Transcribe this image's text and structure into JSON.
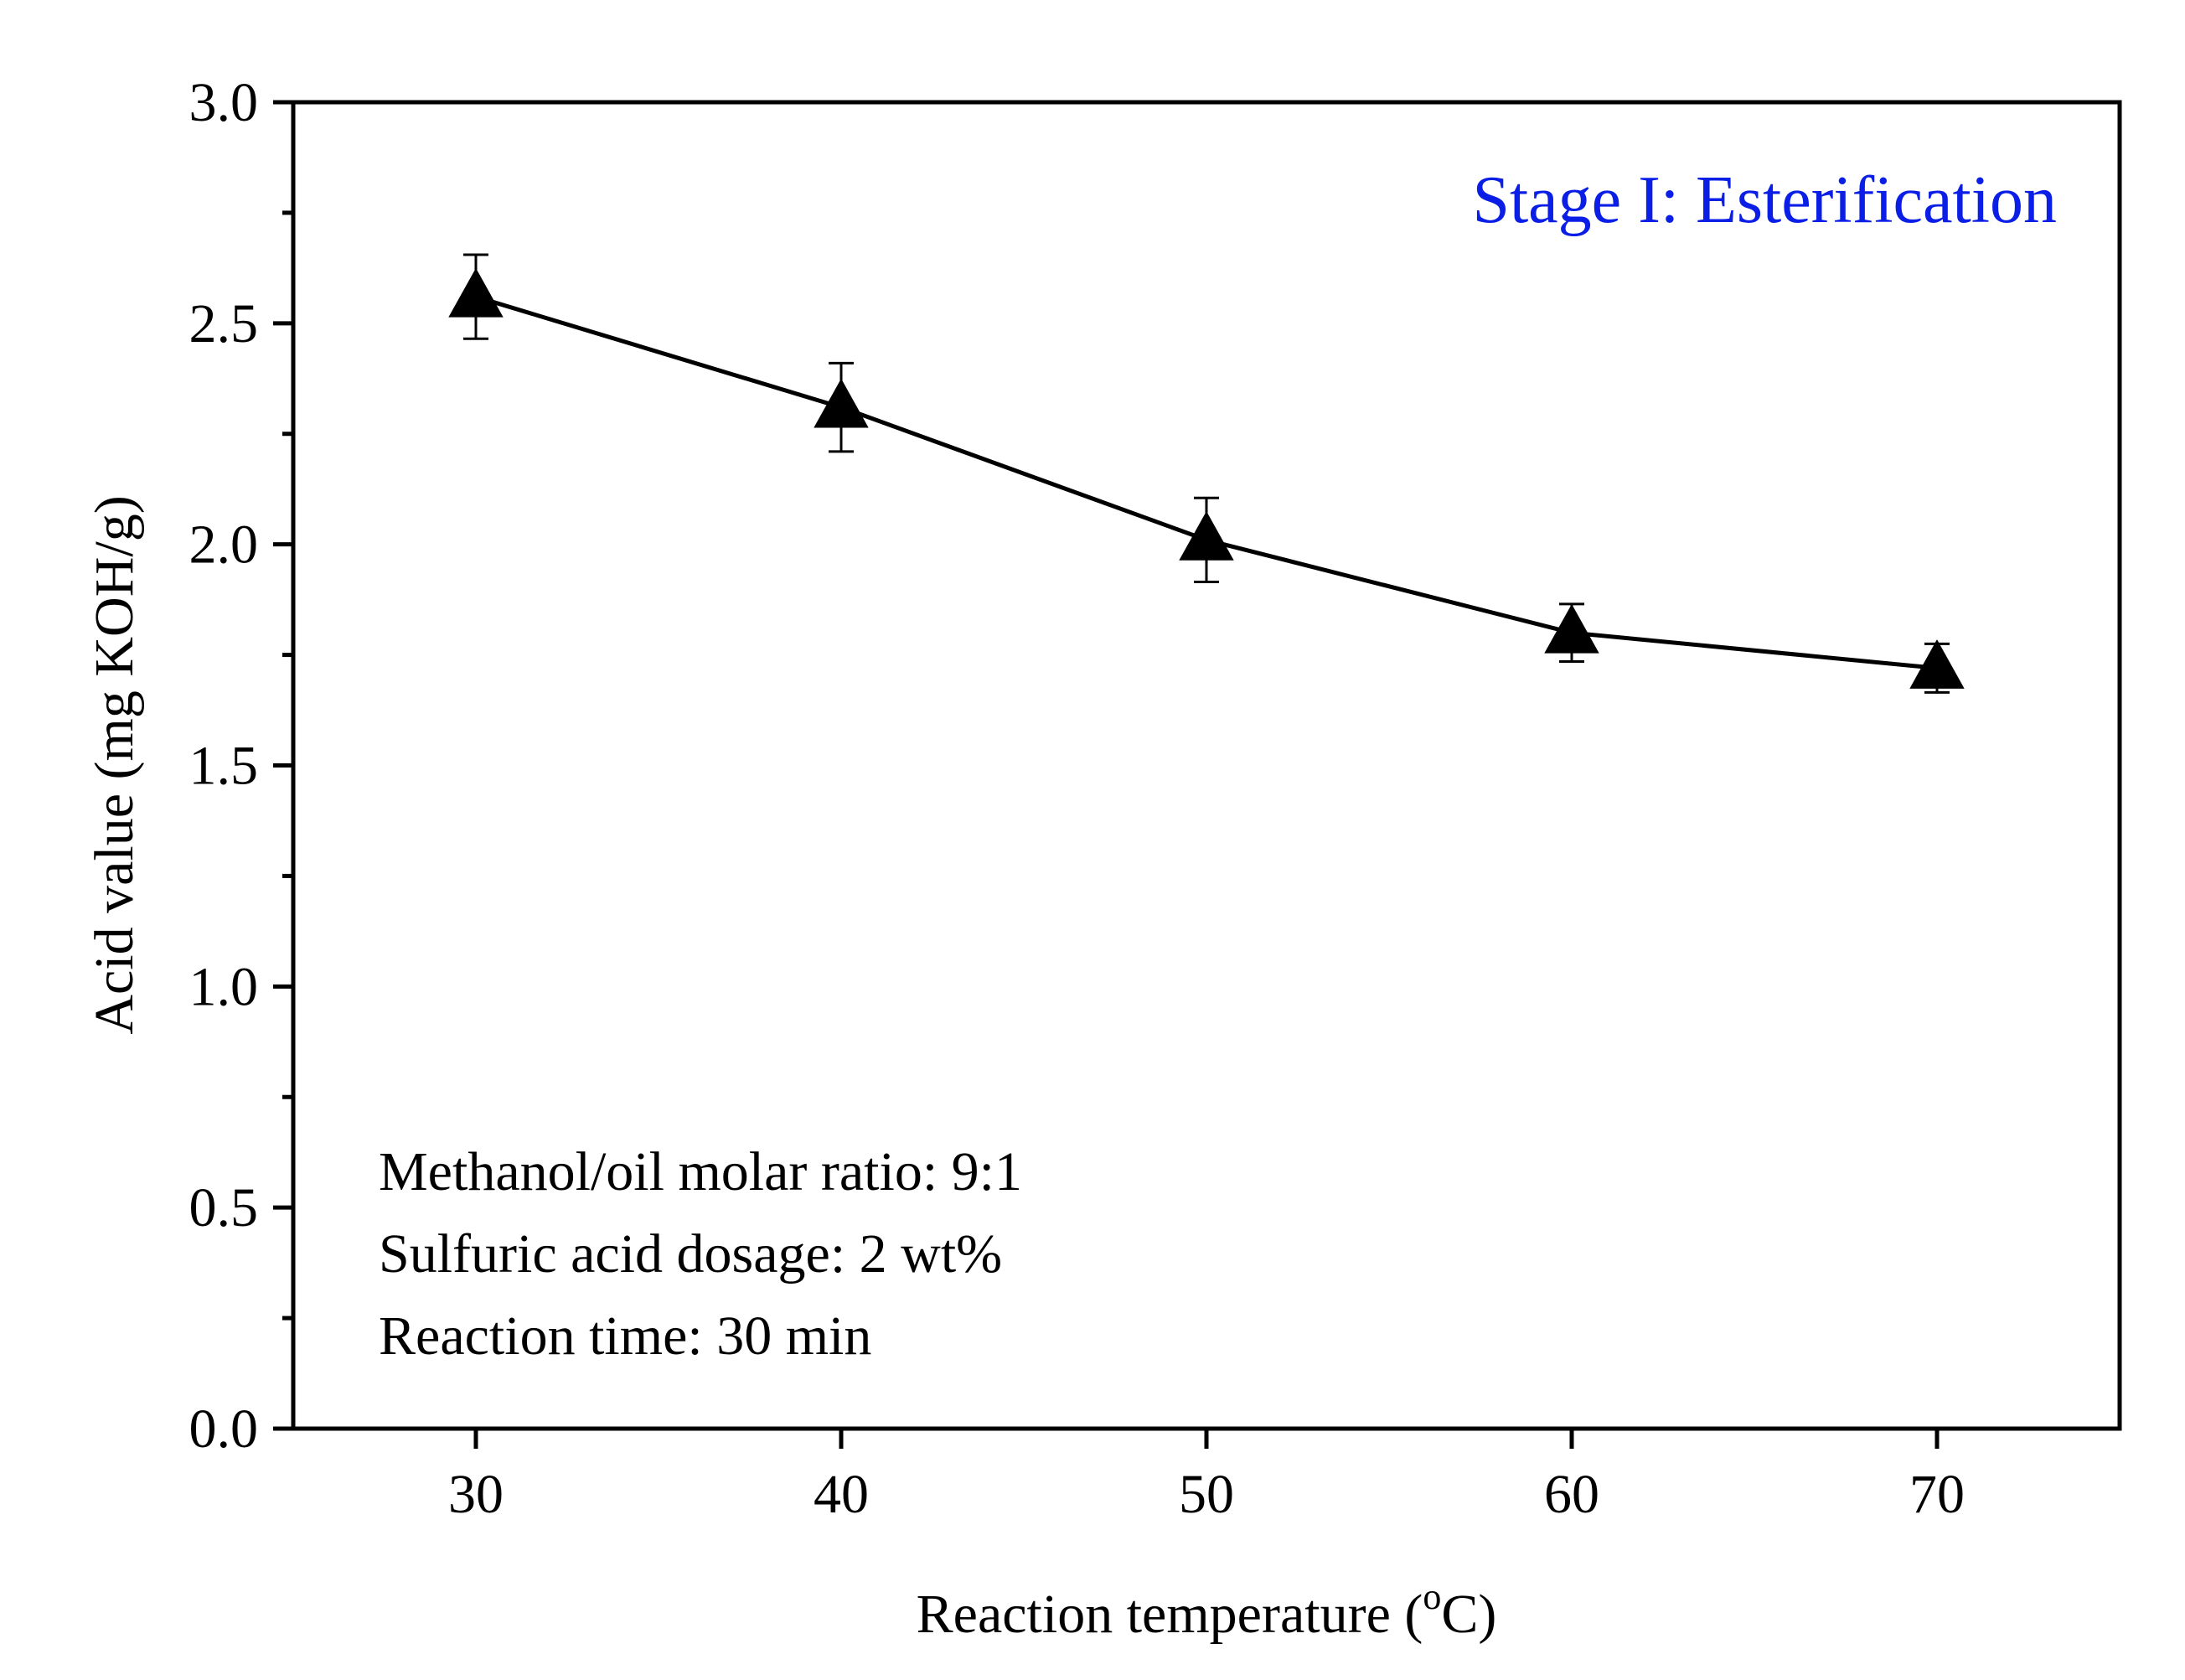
{
  "chart_data": {
    "type": "line",
    "xlabel_main": "Reaction temperature (",
    "xlabel_degree": "o",
    "xlabel_unit": "C)",
    "ylabel": "Acid value (mg KOH/g)",
    "xlim": [
      25,
      75
    ],
    "ylim": [
      0.0,
      3.0
    ],
    "x_ticks": [
      30,
      40,
      50,
      60,
      70
    ],
    "x_tick_labels": [
      "30",
      "40",
      "50",
      "60",
      "70"
    ],
    "y_ticks": [
      0.0,
      0.5,
      1.0,
      1.5,
      2.0,
      2.5,
      3.0
    ],
    "y_tick_labels": [
      "0.0",
      "0.5",
      "1.0",
      "1.5",
      "2.0",
      "2.5",
      "3.0"
    ],
    "y_minor_step": 0.25,
    "grid": false,
    "series": [
      {
        "name": "Acid value",
        "marker": "triangle-up",
        "color": "#000000",
        "x": [
          30,
          40,
          50,
          60,
          70
        ],
        "values": [
          2.56,
          2.31,
          2.01,
          1.8,
          1.72
        ],
        "error": [
          0.095,
          0.1,
          0.095,
          0.065,
          0.055
        ]
      }
    ],
    "annotations": {
      "stage_label": "Stage I: Esterification",
      "stage_color": "#0a1ee6",
      "conditions": [
        "Methanol/oil molar ratio: 9:1",
        "Sulfuric acid dosage: 2 wt%",
        "Reaction time: 30 min"
      ]
    }
  }
}
